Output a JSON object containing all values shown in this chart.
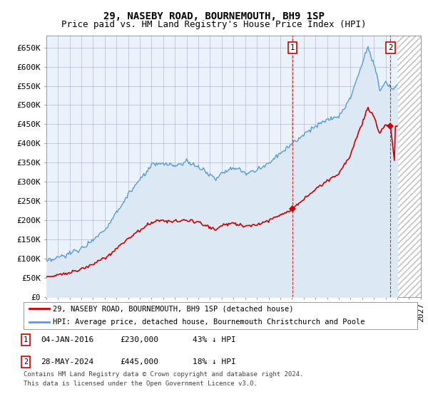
{
  "title": "29, NASEBY ROAD, BOURNEMOUTH, BH9 1SP",
  "subtitle": "Price paid vs. HM Land Registry's House Price Index (HPI)",
  "ylabel_ticks": [
    "£0",
    "£50K",
    "£100K",
    "£150K",
    "£200K",
    "£250K",
    "£300K",
    "£350K",
    "£400K",
    "£450K",
    "£500K",
    "£550K",
    "£600K",
    "£650K"
  ],
  "ylim": [
    0,
    680000
  ],
  "ytick_vals": [
    0,
    50000,
    100000,
    150000,
    200000,
    250000,
    300000,
    350000,
    400000,
    450000,
    500000,
    550000,
    600000,
    650000
  ],
  "hpi_color": "#5b9bd5",
  "hpi_fill_color": "#dce9f5",
  "sale_color": "#cc0000",
  "marker_color": "#cc0000",
  "vline_color": "#cc0000",
  "t1": 2016.04,
  "t2": 2024.41,
  "sale1_price": 230000,
  "sale2_price": 445000,
  "legend_sale": "29, NASEBY ROAD, BOURNEMOUTH, BH9 1SP (detached house)",
  "legend_hpi": "HPI: Average price, detached house, Bournemouth Christchurch and Poole",
  "annotation1_date": "04-JAN-2016",
  "annotation1_price": "£230,000",
  "annotation1_pct": "43% ↓ HPI",
  "annotation2_date": "28-MAY-2024",
  "annotation2_price": "£445,000",
  "annotation2_pct": "18% ↓ HPI",
  "footnote1": "Contains HM Land Registry data © Crown copyright and database right 2024.",
  "footnote2": "This data is licensed under the Open Government Licence v3.0.",
  "background_color": "#ffffff",
  "chart_bg_color": "#eaf2fb",
  "grid_color": "#aaaacc",
  "title_fontsize": 10,
  "subtitle_fontsize": 9,
  "tick_fontsize": 8,
  "xlim_start": 1995,
  "xlim_end": 2027,
  "hatch_start": 2025.0
}
